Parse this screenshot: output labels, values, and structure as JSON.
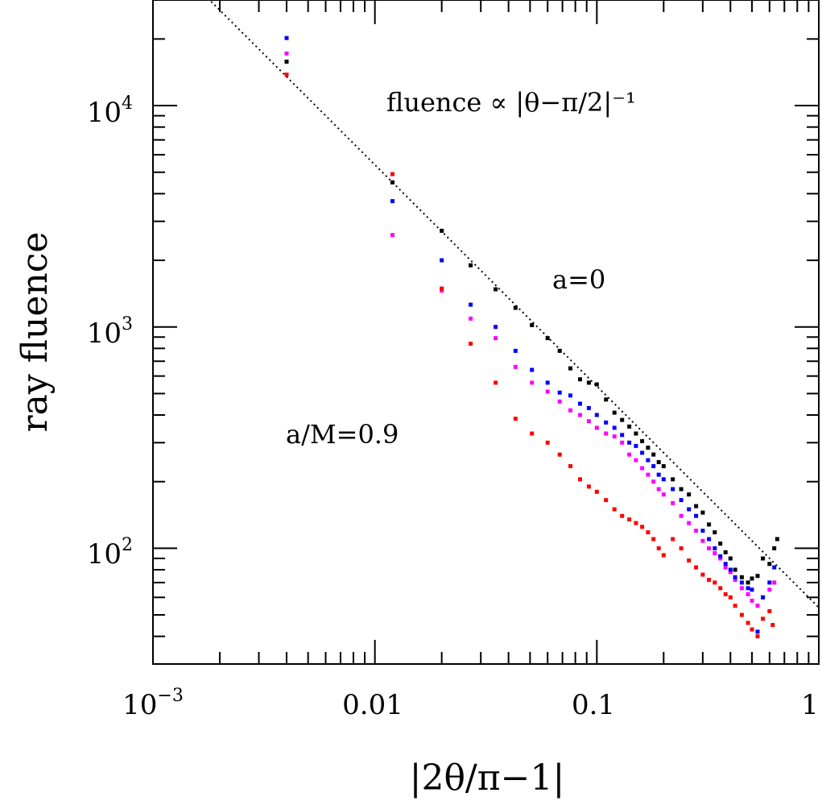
{
  "chart_data": {
    "type": "scatter",
    "xscale": "log",
    "yscale": "log",
    "xlim": [
      0.001,
      1
    ],
    "ylim": [
      30,
      30000
    ],
    "xlabel": "|2θ/π−1|",
    "ylabel": "ray fluence",
    "xticks": [
      {
        "value": 0.001,
        "base": "10",
        "sup": "−3"
      },
      {
        "value": 0.01,
        "label": "0.01"
      },
      {
        "value": 0.1,
        "label": "0.1"
      },
      {
        "value": 1,
        "label": "1"
      }
    ],
    "yticks": [
      {
        "value": 100,
        "base": "10",
        "sup": "2"
      },
      {
        "value": 1000,
        "base": "10",
        "sup": "3"
      },
      {
        "value": 10000,
        "base": "10",
        "sup": "4"
      }
    ],
    "annotations": {
      "fit_label": "fluence ∝ |θ−π/2|⁻¹",
      "a0_label": "a=0",
      "a09_label": "a/M=0.9"
    },
    "colors": {
      "a0": "#000000",
      "a_mid1": "#ff00ff",
      "a_mid2": "#0000ff",
      "a09": "#ff0000",
      "a09_label": "#ff0000",
      "reference_line": "#000000"
    },
    "reference_line": {
      "style": "dotted",
      "function": "y = 54 / x",
      "points": [
        [
          0.001,
          54000
        ],
        [
          1,
          54
        ]
      ]
    },
    "series": [
      {
        "color_key": "a0",
        "points": [
          [
            0.004,
            15800
          ],
          [
            0.012,
            4500
          ],
          [
            0.02,
            2720
          ],
          [
            0.027,
            1900
          ],
          [
            0.035,
            1480
          ],
          [
            0.043,
            1220
          ],
          [
            0.051,
            1020
          ],
          [
            0.06,
            890
          ],
          [
            0.068,
            780
          ],
          [
            0.076,
            650
          ],
          [
            0.084,
            580
          ],
          [
            0.092,
            560
          ],
          [
            0.1,
            550
          ],
          [
            0.11,
            470
          ],
          [
            0.12,
            410
          ],
          [
            0.13,
            380
          ],
          [
            0.14,
            355
          ],
          [
            0.15,
            330
          ],
          [
            0.16,
            305
          ],
          [
            0.17,
            285
          ],
          [
            0.18,
            265
          ],
          [
            0.19,
            245
          ],
          [
            0.2,
            235
          ],
          [
            0.22,
            205
          ],
          [
            0.24,
            185
          ],
          [
            0.26,
            175
          ],
          [
            0.28,
            155
          ],
          [
            0.3,
            145
          ],
          [
            0.32,
            128
          ],
          [
            0.34,
            118
          ],
          [
            0.36,
            105
          ],
          [
            0.38,
            96
          ],
          [
            0.4,
            90
          ],
          [
            0.42,
            80
          ],
          [
            0.45,
            74
          ],
          [
            0.48,
            70
          ],
          [
            0.5,
            73
          ],
          [
            0.53,
            75
          ],
          [
            0.56,
            90
          ],
          [
            0.6,
            85
          ],
          [
            0.63,
            100
          ],
          [
            0.65,
            110
          ]
        ]
      },
      {
        "color_key": "a_mid1",
        "points": [
          [
            0.004,
            17200
          ],
          [
            0.012,
            2600
          ],
          [
            0.02,
            1460
          ],
          [
            0.027,
            1090
          ],
          [
            0.035,
            890
          ],
          [
            0.043,
            660
          ],
          [
            0.051,
            560
          ],
          [
            0.06,
            510
          ],
          [
            0.068,
            460
          ],
          [
            0.076,
            420
          ],
          [
            0.084,
            400
          ],
          [
            0.092,
            375
          ],
          [
            0.1,
            350
          ],
          [
            0.11,
            330
          ],
          [
            0.12,
            320
          ],
          [
            0.13,
            300
          ],
          [
            0.14,
            265
          ],
          [
            0.15,
            250
          ],
          [
            0.16,
            230
          ],
          [
            0.17,
            215
          ],
          [
            0.18,
            200
          ],
          [
            0.19,
            185
          ],
          [
            0.2,
            175
          ],
          [
            0.22,
            160
          ],
          [
            0.24,
            140
          ],
          [
            0.26,
            130
          ],
          [
            0.28,
            120
          ],
          [
            0.3,
            108
          ],
          [
            0.32,
            100
          ],
          [
            0.34,
            95
          ],
          [
            0.36,
            90
          ],
          [
            0.38,
            82
          ],
          [
            0.4,
            78
          ],
          [
            0.42,
            72
          ],
          [
            0.45,
            66
          ],
          [
            0.48,
            62
          ],
          [
            0.5,
            58
          ],
          [
            0.53,
            55
          ],
          [
            0.56,
            60
          ],
          [
            0.6,
            65
          ],
          [
            0.63,
            70
          ]
        ]
      },
      {
        "color_key": "a_mid2",
        "points": [
          [
            0.004,
            20200
          ],
          [
            0.012,
            3700
          ],
          [
            0.02,
            2000
          ],
          [
            0.027,
            1260
          ],
          [
            0.035,
            1000
          ],
          [
            0.043,
            780
          ],
          [
            0.051,
            640
          ],
          [
            0.06,
            560
          ],
          [
            0.068,
            505
          ],
          [
            0.076,
            490
          ],
          [
            0.084,
            450
          ],
          [
            0.092,
            430
          ],
          [
            0.1,
            400
          ],
          [
            0.11,
            370
          ],
          [
            0.12,
            350
          ],
          [
            0.13,
            325
          ],
          [
            0.14,
            300
          ],
          [
            0.15,
            290
          ],
          [
            0.16,
            270
          ],
          [
            0.17,
            250
          ],
          [
            0.18,
            235
          ],
          [
            0.19,
            215
          ],
          [
            0.2,
            205
          ],
          [
            0.22,
            185
          ],
          [
            0.24,
            165
          ],
          [
            0.26,
            150
          ],
          [
            0.28,
            140
          ],
          [
            0.3,
            120
          ],
          [
            0.32,
            110
          ],
          [
            0.34,
            100
          ],
          [
            0.36,
            92
          ],
          [
            0.38,
            85
          ],
          [
            0.4,
            80
          ],
          [
            0.42,
            74
          ],
          [
            0.45,
            70
          ],
          [
            0.48,
            66
          ],
          [
            0.5,
            65
          ],
          [
            0.53,
            42
          ],
          [
            0.56,
            60
          ],
          [
            0.6,
            70
          ],
          [
            0.63,
            82
          ]
        ]
      },
      {
        "color_key": "a09",
        "points": [
          [
            0.004,
            13800
          ],
          [
            0.012,
            4900
          ],
          [
            0.02,
            1490
          ],
          [
            0.027,
            840
          ],
          [
            0.035,
            560
          ],
          [
            0.043,
            385
          ],
          [
            0.051,
            330
          ],
          [
            0.06,
            300
          ],
          [
            0.068,
            265
          ],
          [
            0.076,
            235
          ],
          [
            0.084,
            205
          ],
          [
            0.092,
            190
          ],
          [
            0.1,
            180
          ],
          [
            0.11,
            165
          ],
          [
            0.12,
            150
          ],
          [
            0.13,
            140
          ],
          [
            0.14,
            135
          ],
          [
            0.15,
            130
          ],
          [
            0.16,
            125
          ],
          [
            0.17,
            118
          ],
          [
            0.18,
            110
          ],
          [
            0.19,
            100
          ],
          [
            0.2,
            93
          ],
          [
            0.22,
            110
          ],
          [
            0.24,
            100
          ],
          [
            0.26,
            88
          ],
          [
            0.28,
            82
          ],
          [
            0.3,
            76
          ],
          [
            0.32,
            72
          ],
          [
            0.34,
            70
          ],
          [
            0.36,
            66
          ],
          [
            0.38,
            62
          ],
          [
            0.4,
            60
          ],
          [
            0.42,
            55
          ],
          [
            0.45,
            50
          ],
          [
            0.48,
            46
          ],
          [
            0.5,
            43
          ],
          [
            0.53,
            40
          ],
          [
            0.56,
            48
          ],
          [
            0.6,
            52
          ],
          [
            0.62,
            45
          ]
        ]
      }
    ]
  }
}
